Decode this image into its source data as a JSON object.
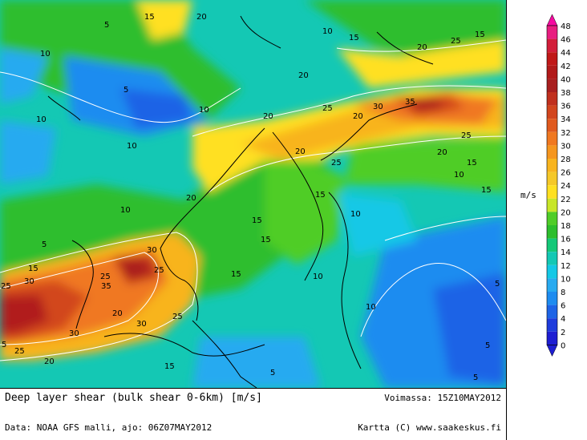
{
  "map": {
    "title": "Deep layer shear (bulk shear 0-6km) [m/s]",
    "valid_time": "Voimassa: 15Z10MAY2012",
    "data_source": "Data: NOAA GFS malli, ajo: 06Z07MAY2012",
    "credit": "Kartta (C) www.saakeskus.fi",
    "contour_labels": [
      "5",
      "10",
      "15",
      "20",
      "25",
      "30",
      "35"
    ]
  },
  "legend": {
    "unit": "m/s",
    "levels": [
      "48",
      "46",
      "44",
      "42",
      "40",
      "38",
      "36",
      "34",
      "32",
      "30",
      "28",
      "26",
      "24",
      "22",
      "20",
      "18",
      "16",
      "14",
      "12",
      "10",
      "8",
      "6",
      "4",
      "2",
      "0"
    ],
    "colors": [
      "#f50aa0",
      "#e81e80",
      "#d21e3a",
      "#c01818",
      "#b11a1a",
      "#a81f1f",
      "#c0301e",
      "#d2461e",
      "#e05a1e",
      "#f07820",
      "#f5961e",
      "#f8b41e",
      "#f5c828",
      "#ffe020",
      "#c8e628",
      "#50cd28",
      "#2dbe2d",
      "#14c878",
      "#14c8b4",
      "#14c8e6",
      "#28aaf0",
      "#1e8cf0",
      "#1e64e6",
      "#1e3cdc",
      "#1e1ed2"
    ]
  }
}
